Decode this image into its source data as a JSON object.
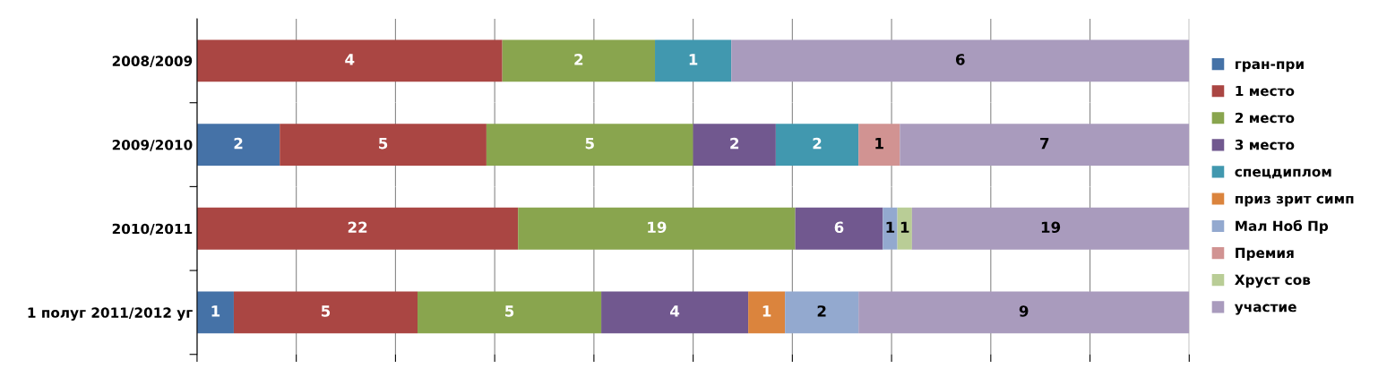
{
  "chart_data": [
    {
      "type": "bar",
      "orientation": "horizontal",
      "stacked": true,
      "grid": "x",
      "legend": "right",
      "data_labels": true,
      "categories": [
        "2008/2009"
      ],
      "series": [
        {
          "name": "гран-при",
          "color": "#4572a7",
          "values": [
            null
          ]
        },
        {
          "name": "1 место",
          "color": "#aa4643",
          "values": [
            4
          ]
        },
        {
          "name": "2 место",
          "color": "#89a54e",
          "values": [
            2
          ]
        },
        {
          "name": "3 место",
          "color": "#71588f",
          "values": [
            null
          ]
        },
        {
          "name": "спецдиплом",
          "color": "#4198af",
          "values": [
            1
          ]
        },
        {
          "name": "приз зрит симп",
          "color": "#db843d",
          "values": [
            null
          ]
        },
        {
          "name": "Мал Ноб Пр",
          "color": "#93a9cf",
          "values": [
            null
          ]
        },
        {
          "name": "Премия",
          "color": "#d19392",
          "values": [
            null
          ]
        },
        {
          "name": "Хруст сов",
          "color": "#b9cd96",
          "values": [
            null
          ]
        },
        {
          "name": "участие",
          "color": "#a99bbd",
          "values": [
            6
          ]
        }
      ]
    },
    {
      "type": "bar",
      "orientation": "horizontal",
      "stacked": true,
      "grid": "x",
      "data_labels": true,
      "categories": [
        "2009/2010"
      ],
      "series": [
        {
          "color": "#4572a7",
          "values": [
            2
          ]
        },
        {
          "color": "#aa4643",
          "values": [
            5
          ]
        },
        {
          "color": "#89a54e",
          "values": [
            5
          ]
        },
        {
          "color": "#71588f",
          "values": [
            2
          ]
        },
        {
          "color": "#4198af",
          "values": [
            2
          ]
        },
        {
          "color": "#d19392",
          "values": [
            1
          ]
        },
        {
          "color": "#a99bbd",
          "values": [
            7
          ]
        }
      ]
    },
    {
      "type": "bar",
      "orientation": "horizontal",
      "stacked": true,
      "grid": "x",
      "data_labels": true,
      "categories": [
        "2010/2011"
      ],
      "series": [
        {
          "color": "#aa4643",
          "values": [
            22
          ]
        },
        {
          "color": "#89a54e",
          "values": [
            19
          ]
        },
        {
          "color": "#71588f",
          "values": [
            6
          ]
        },
        {
          "color": "#93a9cf",
          "values": [
            1
          ]
        },
        {
          "color": "#b9cd96",
          "values": [
            1
          ]
        },
        {
          "color": "#a99bbd",
          "values": [
            19
          ]
        }
      ]
    },
    {
      "type": "bar",
      "orientation": "horizontal",
      "stacked": true,
      "grid": "x",
      "data_labels": true,
      "categories": [
        "1 полуг 2011/2012 уг"
      ],
      "series": [
        {
          "color": "#4572a7",
          "values": [
            1
          ]
        },
        {
          "color": "#aa4643",
          "values": [
            5
          ]
        },
        {
          "color": "#89a54e",
          "values": [
            5
          ]
        },
        {
          "color": "#71588f",
          "values": [
            4
          ]
        },
        {
          "color": "#db843d",
          "values": [
            1
          ]
        },
        {
          "color": "#93a9cf",
          "values": [
            2
          ]
        },
        {
          "color": "#a99bbd",
          "values": [
            9
          ]
        }
      ]
    }
  ]
}
